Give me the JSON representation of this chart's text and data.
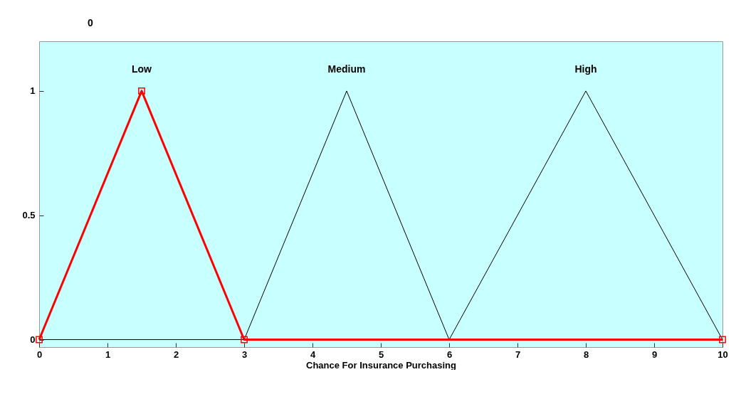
{
  "chart_data": {
    "type": "line",
    "title": "0",
    "xlabel": "Chance For Insurance Purchasing",
    "xlim": [
      0,
      10
    ],
    "ylim": [
      -0.03,
      1.2
    ],
    "xticks": [
      0,
      1,
      2,
      3,
      4,
      5,
      6,
      7,
      8,
      9,
      10
    ],
    "yticks": [
      0,
      0.5,
      1
    ],
    "grid": false,
    "series": [
      {
        "name": "Low",
        "color": "#ff0000",
        "x": [
          0,
          1.5,
          3,
          10
        ],
        "values": [
          0,
          1,
          0,
          0
        ],
        "marker": "square"
      },
      {
        "name": "Medium",
        "color": "#000000",
        "x": [
          0,
          3,
          4.5,
          6,
          10
        ],
        "values": [
          0,
          0,
          1,
          0,
          0
        ]
      },
      {
        "name": "High",
        "color": "#000000",
        "x": [
          0,
          6,
          8,
          10
        ],
        "values": [
          0,
          0,
          1,
          0
        ]
      }
    ]
  }
}
